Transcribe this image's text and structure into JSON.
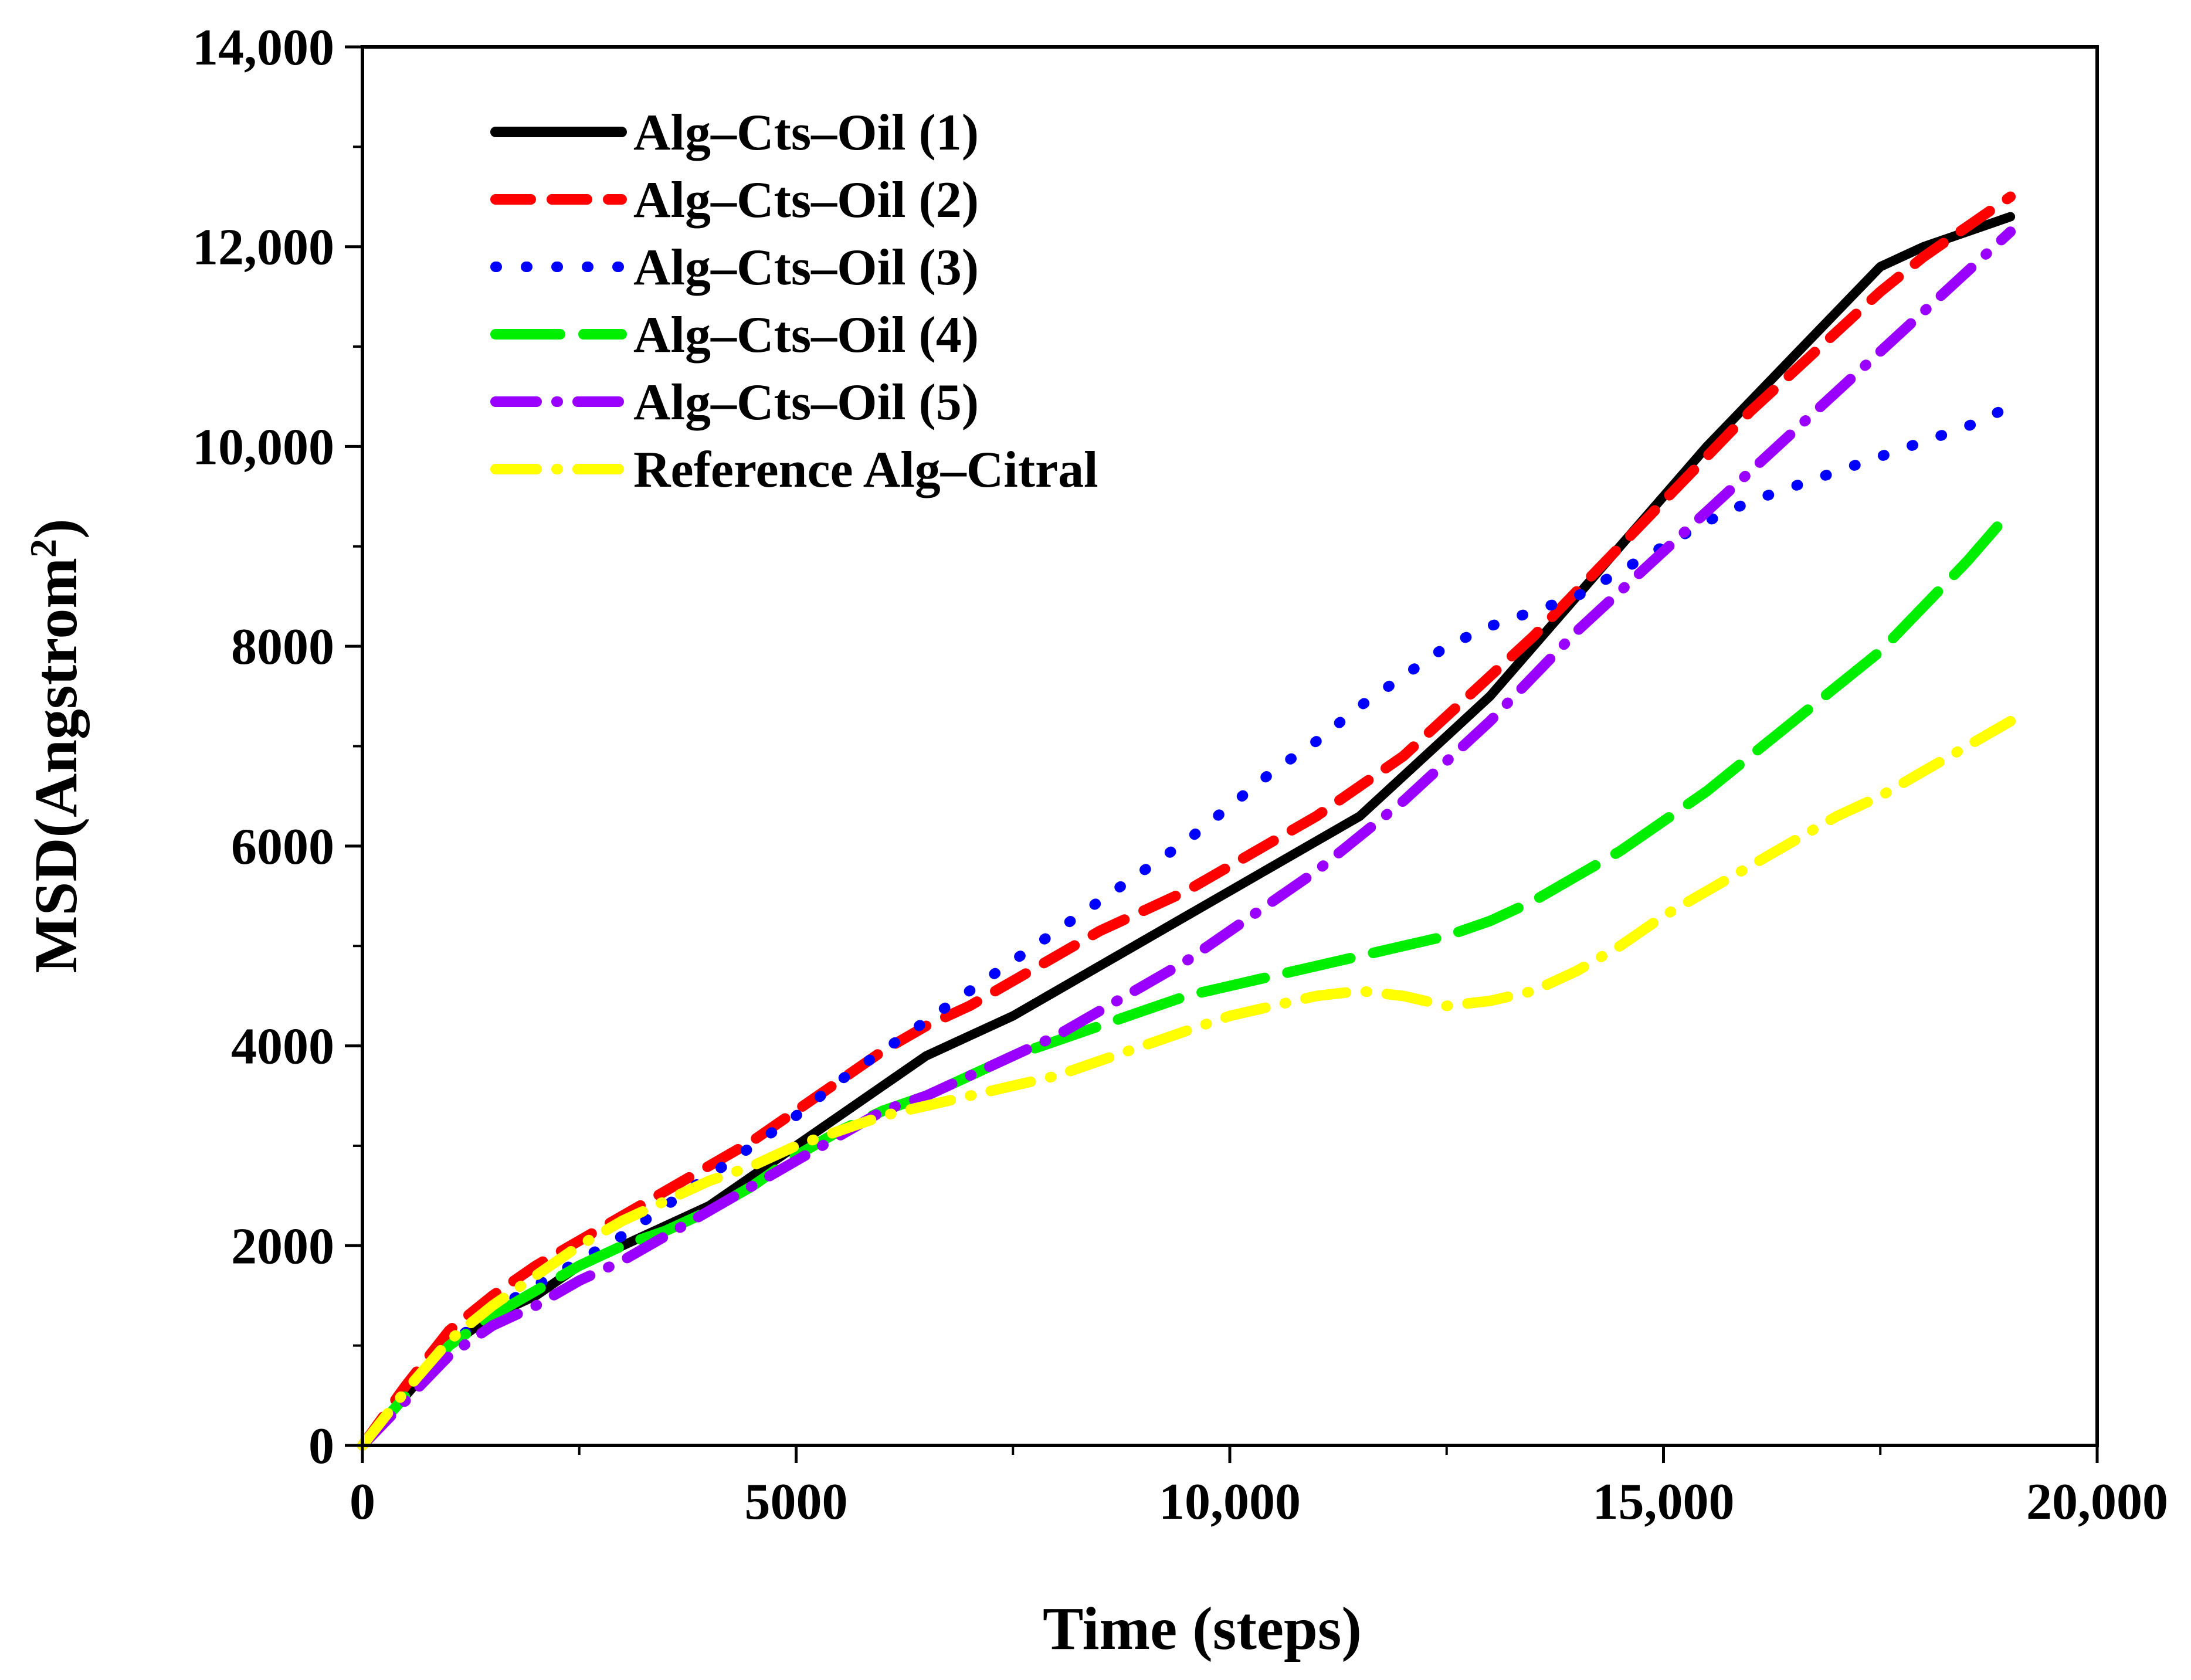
{
  "chart_data": {
    "type": "line",
    "title": "",
    "xlabel": "Time (steps)",
    "ylabel_main": "MSD(Angstrom",
    "ylabel_sup": "2",
    "ylabel_close": ")",
    "xlim": [
      0,
      20000
    ],
    "ylim": [
      0,
      14000
    ],
    "grid": false,
    "legend_position": "top-left",
    "x_ticks": [
      {
        "value": 0,
        "label": "0"
      },
      {
        "value": 5000,
        "label": "5000"
      },
      {
        "value": 10000,
        "label": "10,000"
      },
      {
        "value": 15000,
        "label": "15,000"
      },
      {
        "value": 20000,
        "label": "20,000"
      }
    ],
    "y_ticks": [
      {
        "value": 0,
        "label": "0"
      },
      {
        "value": 2000,
        "label": "2000"
      },
      {
        "value": 4000,
        "label": "4000"
      },
      {
        "value": 6000,
        "label": "6000"
      },
      {
        "value": 8000,
        "label": "8000"
      },
      {
        "value": 10000,
        "label": "10,000"
      },
      {
        "value": 12000,
        "label": "12,000"
      },
      {
        "value": 14000,
        "label": "14,000"
      }
    ],
    "series": [
      {
        "name": "Alg–Cts–Oil (1)",
        "color": "#000000",
        "style": "solid",
        "x": [
          0,
          500,
          1000,
          1500,
          2000,
          2500,
          3000,
          3500,
          4000,
          4500,
          5000,
          5500,
          6000,
          6500,
          7000,
          7500,
          8000,
          8500,
          9000,
          9500,
          10000,
          10500,
          11000,
          11500,
          12000,
          12500,
          13000,
          13500,
          14000,
          14500,
          15000,
          15500,
          16000,
          16500,
          17000,
          17500,
          18000,
          18500,
          19000
        ],
        "y": [
          0,
          500,
          1000,
          1300,
          1500,
          1800,
          2000,
          2200,
          2400,
          2700,
          3000,
          3300,
          3600,
          3900,
          4100,
          4300,
          4550,
          4800,
          5050,
          5300,
          5550,
          5800,
          6050,
          6300,
          6700,
          7100,
          7500,
          8000,
          8500,
          9000,
          9500,
          10000,
          10450,
          10900,
          11350,
          11800,
          12000,
          12150,
          12300
        ]
      },
      {
        "name": "Alg–Cts–Oil (2)",
        "color": "#ff0000",
        "style": "dash",
        "x": [
          0,
          500,
          1000,
          1500,
          2000,
          2500,
          3000,
          3500,
          4000,
          4500,
          5000,
          5500,
          6000,
          6500,
          7000,
          7500,
          8000,
          8500,
          9000,
          9500,
          10000,
          10500,
          11000,
          11500,
          12000,
          12500,
          13000,
          13500,
          14000,
          14500,
          15000,
          15500,
          16000,
          16500,
          17000,
          17500,
          18000,
          18500,
          19000
        ],
        "y": [
          0,
          600,
          1150,
          1500,
          1800,
          2050,
          2300,
          2550,
          2800,
          3050,
          3350,
          3650,
          3950,
          4200,
          4400,
          4650,
          4900,
          5150,
          5350,
          5550,
          5800,
          6050,
          6300,
          6600,
          6900,
          7300,
          7700,
          8100,
          8550,
          9000,
          9450,
          9900,
          10350,
          10750,
          11150,
          11550,
          11900,
          12200,
          12500
        ]
      },
      {
        "name": "Alg–Cts–Oil (3)",
        "color": "#0000ff",
        "style": "dot",
        "x": [
          0,
          500,
          1000,
          1500,
          2000,
          2500,
          3000,
          3500,
          4000,
          4500,
          5000,
          5500,
          6000,
          6500,
          7000,
          7500,
          8000,
          8500,
          9000,
          9500,
          10000,
          10500,
          11000,
          11500,
          12000,
          12500,
          13000,
          13500,
          14000,
          14500,
          15000,
          15500,
          16000,
          16500,
          17000,
          17500,
          18000,
          18500,
          19000
        ],
        "y": [
          0,
          500,
          1000,
          1350,
          1600,
          1850,
          2100,
          2400,
          2700,
          3000,
          3300,
          3650,
          3950,
          4250,
          4550,
          4850,
          5150,
          5450,
          5750,
          6050,
          6400,
          6750,
          7050,
          7400,
          7700,
          8000,
          8200,
          8350,
          8500,
          8750,
          9000,
          9250,
          9450,
          9600,
          9750,
          9900,
          10050,
          10200,
          10400
        ]
      },
      {
        "name": "Alg–Cts–Oil (4)",
        "color": "#00ee00",
        "style": "long-dash",
        "x": [
          0,
          500,
          1000,
          1500,
          2000,
          2500,
          3000,
          3500,
          4000,
          4500,
          5000,
          5500,
          6000,
          6500,
          7000,
          7500,
          8000,
          8500,
          9000,
          9500,
          10000,
          10500,
          11000,
          11500,
          12000,
          12500,
          13000,
          13500,
          14000,
          14500,
          15000,
          15500,
          16000,
          16500,
          17000,
          17500,
          18000,
          18500,
          19000
        ],
        "y": [
          0,
          500,
          1000,
          1300,
          1550,
          1800,
          2000,
          2150,
          2350,
          2600,
          2900,
          3150,
          3350,
          3500,
          3700,
          3900,
          4050,
          4200,
          4350,
          4500,
          4600,
          4700,
          4800,
          4900,
          5000,
          5100,
          5250,
          5450,
          5700,
          5950,
          6250,
          6550,
          6900,
          7250,
          7600,
          7950,
          8400,
          8850,
          9350
        ]
      },
      {
        "name": "Alg–Cts–Oil (5)",
        "color": "#9900ff",
        "style": "dash-dot",
        "x": [
          0,
          500,
          1000,
          1500,
          2000,
          2500,
          3000,
          3500,
          4000,
          4500,
          5000,
          5500,
          6000,
          6500,
          7000,
          7500,
          8000,
          8500,
          9000,
          9500,
          10000,
          10500,
          11000,
          11500,
          12000,
          12500,
          13000,
          13500,
          14000,
          14500,
          15000,
          15500,
          16000,
          16500,
          17000,
          17500,
          18000,
          18500,
          19000
        ],
        "y": [
          0,
          450,
          900,
          1200,
          1400,
          1650,
          1850,
          2100,
          2350,
          2600,
          2850,
          3100,
          3350,
          3500,
          3700,
          3900,
          4100,
          4350,
          4600,
          4850,
          5150,
          5450,
          5750,
          6100,
          6450,
          6850,
          7250,
          7700,
          8150,
          8550,
          8950,
          9350,
          9750,
          10150,
          10550,
          10950,
          11350,
          11750,
          12150
        ]
      },
      {
        "name": "Reference Alg–Citral",
        "color": "#ffff00",
        "style": "dash-dot",
        "x": [
          0,
          500,
          1000,
          1500,
          2000,
          2500,
          3000,
          3500,
          4000,
          4500,
          5000,
          5500,
          6000,
          6500,
          7000,
          7500,
          8000,
          8500,
          9000,
          9500,
          10000,
          10500,
          11000,
          11500,
          12000,
          12500,
          13000,
          13500,
          14000,
          14500,
          15000,
          15500,
          16000,
          16500,
          17000,
          17500,
          18000,
          18500,
          19000
        ],
        "y": [
          0,
          550,
          1050,
          1400,
          1700,
          2000,
          2250,
          2450,
          2650,
          2800,
          3000,
          3150,
          3300,
          3400,
          3500,
          3600,
          3700,
          3850,
          4000,
          4150,
          4300,
          4400,
          4500,
          4550,
          4500,
          4400,
          4450,
          4550,
          4750,
          5000,
          5300,
          5550,
          5800,
          6050,
          6300,
          6500,
          6750,
          7000,
          7250
        ]
      }
    ]
  }
}
